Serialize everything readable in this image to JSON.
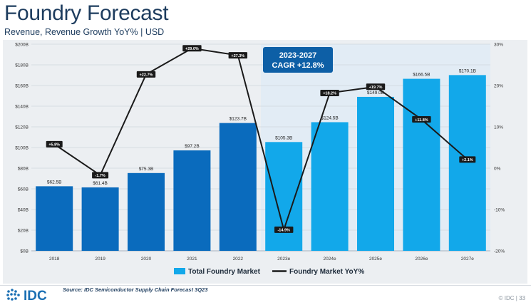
{
  "page": {
    "title": "Foundry Forecast",
    "subtitle": "Revenue, Revenue Growth YoY% | USD",
    "source": "Source: IDC Semiconductor Supply Chain Forecast 3Q23",
    "footer_brand": "© IDC",
    "page_number": "33",
    "logo_text": "IDC"
  },
  "colors": {
    "actual_bar": "#0a6bbd",
    "forecast_bar": "#12a8ea",
    "line": "#1a1a1a",
    "callout_bg": "#0d5fa6",
    "forecast_shade": "#e2ecf5",
    "logo": "#1a6fb3"
  },
  "chart_data": {
    "type": "bar",
    "categories": [
      "2018",
      "2019",
      "2020",
      "2021",
      "2022",
      "2023e",
      "2024e",
      "2025e",
      "2026e",
      "2027e"
    ],
    "series": [
      {
        "name": "Total Foundry Market",
        "type": "bar",
        "axis": "left",
        "values": [
          62.5,
          61.4,
          75.3,
          97.2,
          123.7,
          105.3,
          124.5,
          149.0,
          166.5,
          170.1
        ],
        "labels": [
          "$62.5B",
          "$61.4B",
          "$75.3B",
          "$97.2B",
          "$123.7B",
          "$105.3B",
          "$124.5B",
          "$149.0B",
          "$166.5B",
          "$170.1B"
        ]
      },
      {
        "name": "Foundry Market YoY%",
        "type": "line",
        "axis": "right",
        "values": [
          5.8,
          -1.7,
          22.7,
          29.0,
          27.3,
          -14.9,
          18.2,
          19.7,
          11.8,
          2.1
        ],
        "labels": [
          "+5.8%",
          "-1.7%",
          "+22.7%",
          "+29.0%",
          "+27.3%",
          "-14.9%",
          "+18.2%",
          "+19.7%",
          "+11.8%",
          "+2.1%"
        ]
      }
    ],
    "y_left": {
      "range": [
        0,
        200
      ],
      "ticks": [
        0,
        20,
        40,
        60,
        80,
        100,
        120,
        140,
        160,
        180,
        200
      ],
      "tick_labels": [
        "$0B",
        "$20B",
        "$40B",
        "$60B",
        "$80B",
        "$100B",
        "$120B",
        "$140B",
        "$160B",
        "$180B",
        "$200B"
      ]
    },
    "y_right": {
      "range": [
        -20,
        30
      ],
      "ticks": [
        -20,
        -10,
        0,
        10,
        20,
        30
      ],
      "tick_labels": [
        "-20%",
        "-10%",
        "0%",
        "10%",
        "20%",
        "30%"
      ]
    },
    "forecast_start_index": 5,
    "callout": {
      "line1": "2023-2027",
      "line2": "CAGR +12.8%"
    },
    "grid": true,
    "legend_position": "bottom"
  }
}
